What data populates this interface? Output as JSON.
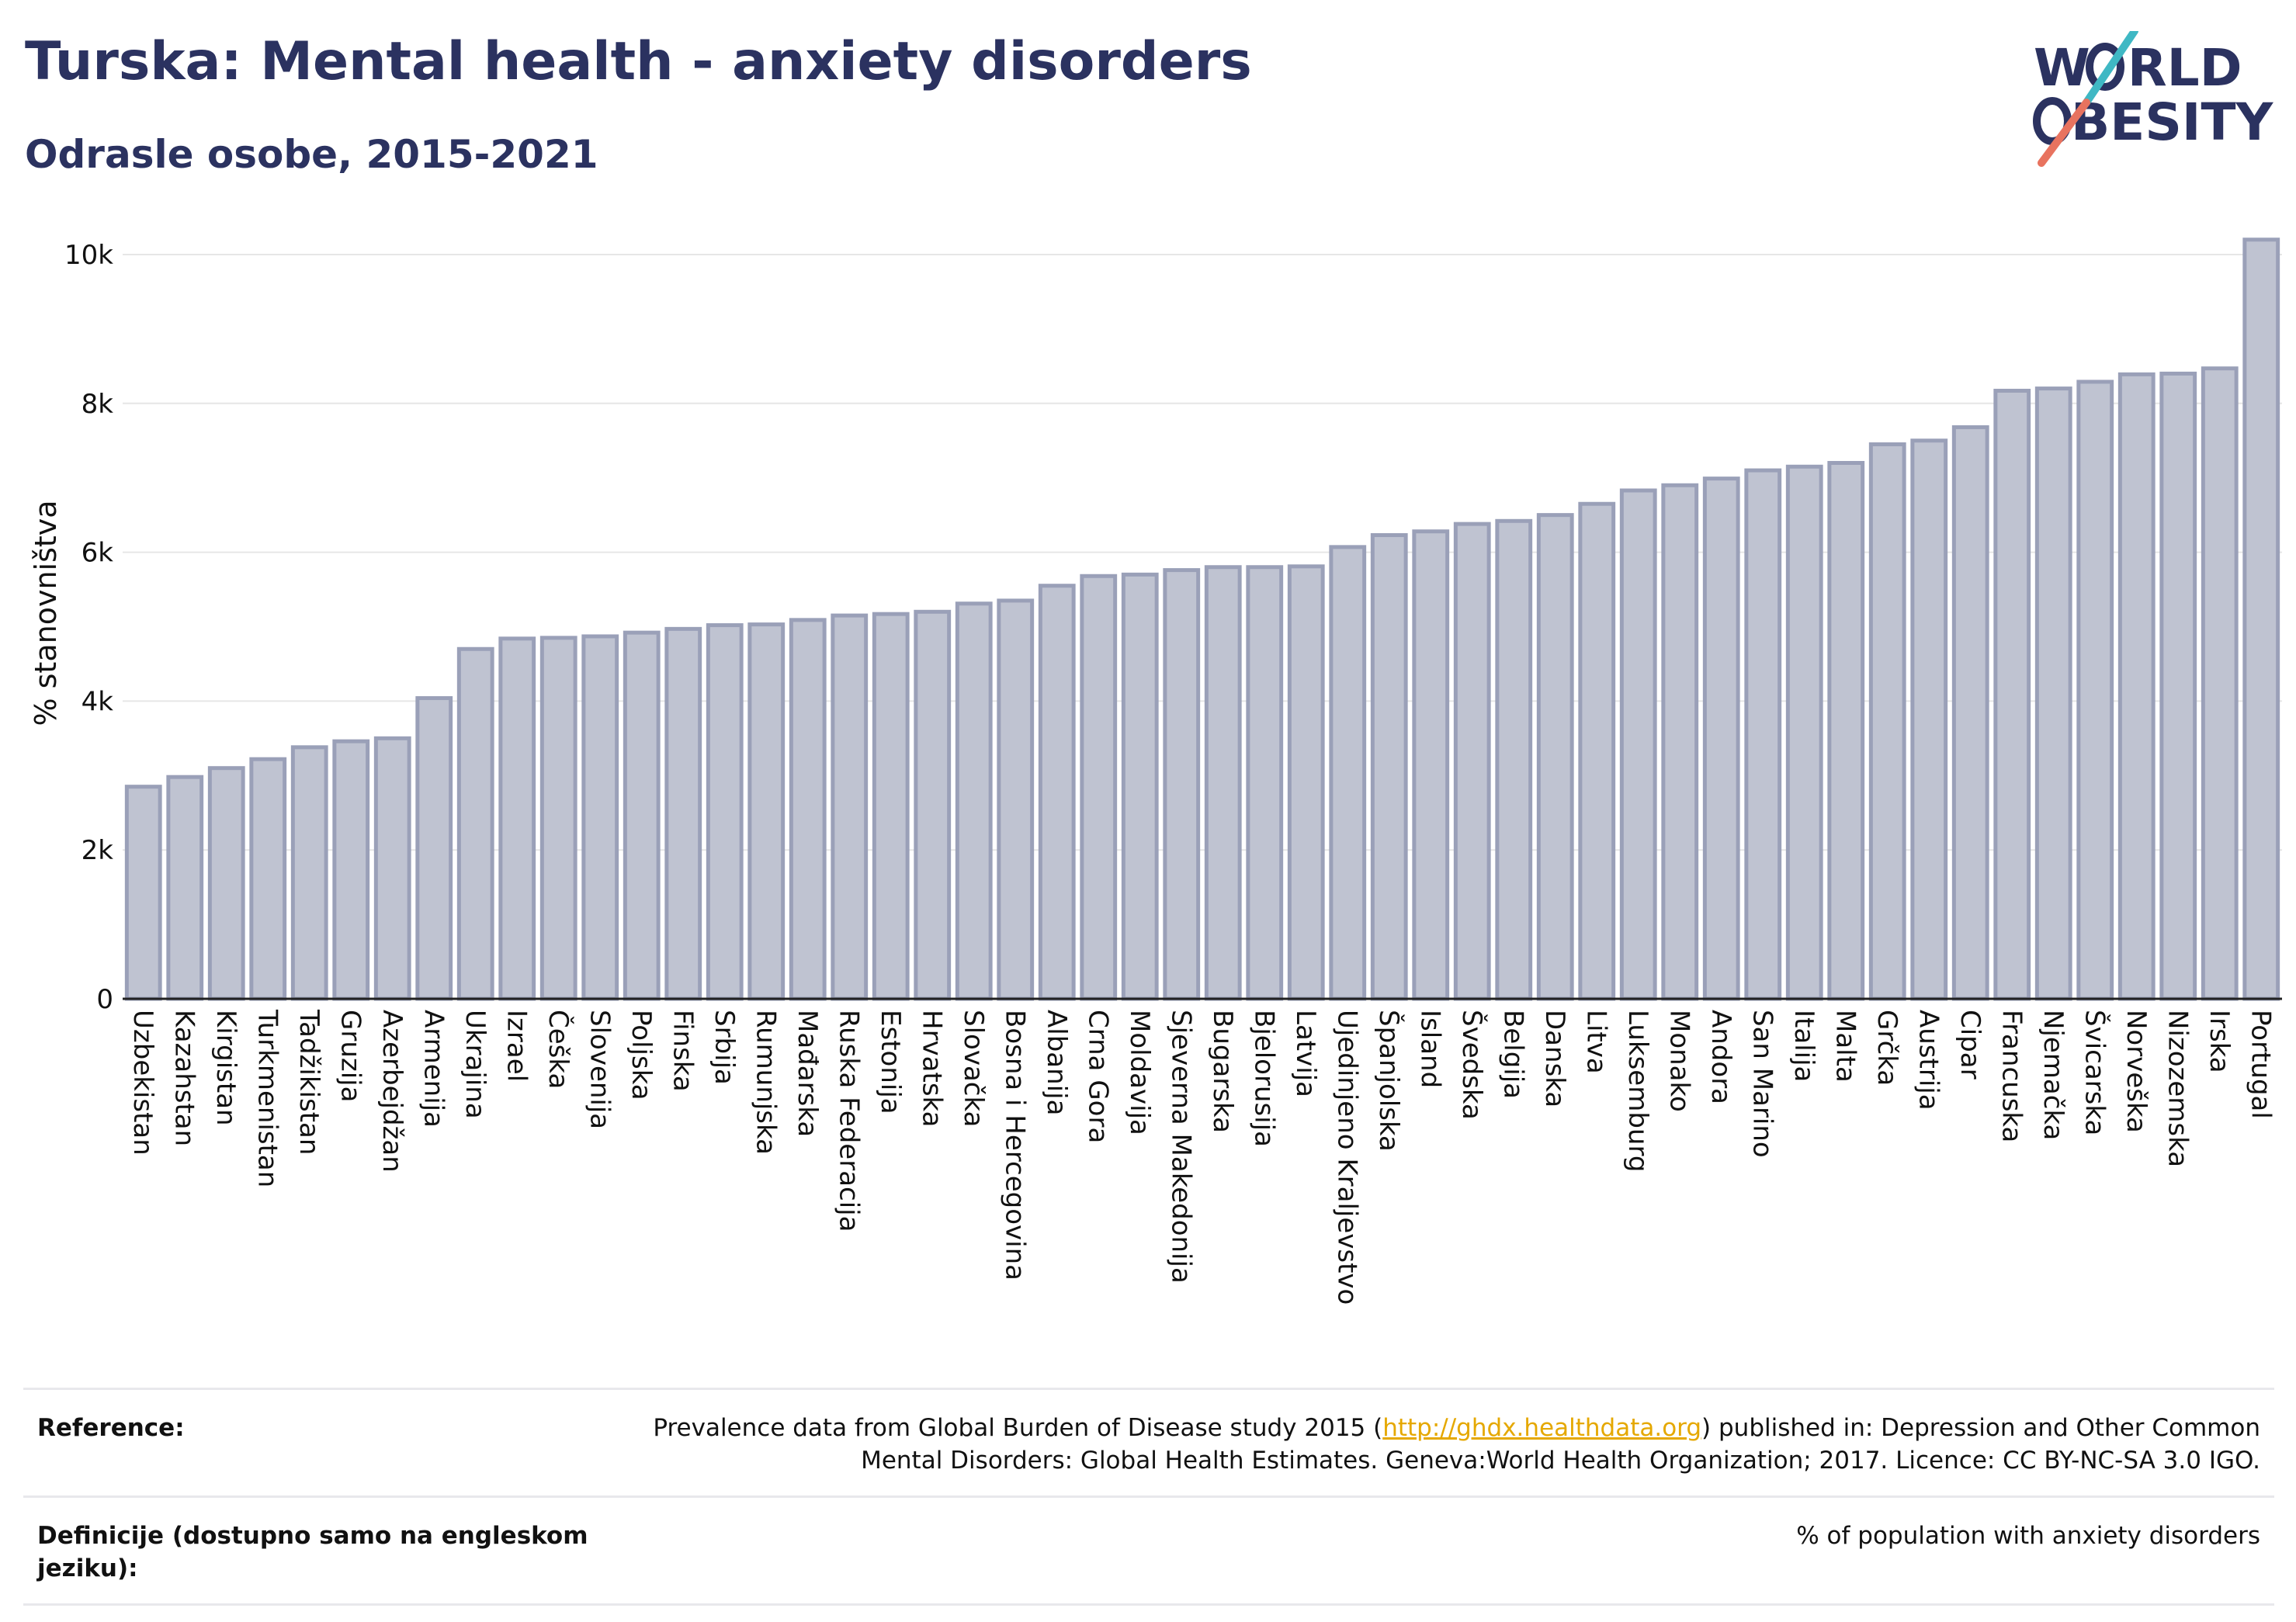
{
  "header": {
    "title": "Turska: Mental health - anxiety disorders",
    "subtitle": "Odrasle osobe, 2015-2021"
  },
  "logo": {
    "line1_a": "W",
    "line1_b": "RLD",
    "line2_b": "BESITY"
  },
  "colors": {
    "title": "#2b3260",
    "bar_fill": "#bfc3d1",
    "bar_stroke": "#9aa0b8",
    "logo_teal": "#3fb8c4",
    "logo_coral": "#e8735f",
    "link": "#e5a800"
  },
  "chart_data": {
    "type": "bar",
    "ylabel": "% stanovništva",
    "ylim": [
      0,
      10500
    ],
    "yticks": [
      0,
      2000,
      4000,
      6000,
      8000,
      10000
    ],
    "ytick_labels": [
      "0",
      "2k",
      "4k",
      "6k",
      "8k",
      "10k"
    ],
    "grid": true,
    "categories": [
      "Uzbekistan",
      "Kazahstan",
      "Kirgistan",
      "Turkmenistan",
      "Tadžikistan",
      "Gruzija",
      "Azerbejdžan",
      "Armenija",
      "Ukrajina",
      "Izrael",
      "Češka",
      "Slovenija",
      "Poljska",
      "Finska",
      "Srbija",
      "Rumunjska",
      "Mađarska",
      "Ruska Federacija",
      "Estonija",
      "Hrvatska",
      "Slovačka",
      "Bosna i Hercegovina",
      "Albanija",
      "Crna Gora",
      "Moldavija",
      "Sjeverna Makedonija",
      "Bugarska",
      "Bjelorusija",
      "Latvija",
      "Ujedinjeno Kraljevstvo",
      "Španjolska",
      "Island",
      "Švedska",
      "Belgija",
      "Danska",
      "Litva",
      "Luksemburg",
      "Monako",
      "Andora",
      "San Marino",
      "Italija",
      "Malta",
      "Grčka",
      "Austrija",
      "Cipar",
      "Francuska",
      "Njemačka",
      "Švicarska",
      "Norveška",
      "Nizozemska",
      "Irska",
      "Portugal"
    ],
    "values": [
      2850,
      2980,
      3100,
      3220,
      3380,
      3460,
      3500,
      4040,
      4700,
      4840,
      4850,
      4870,
      4920,
      4970,
      5020,
      5030,
      5090,
      5150,
      5170,
      5200,
      5310,
      5350,
      5550,
      5680,
      5700,
      5760,
      5800,
      5800,
      5810,
      6070,
      6230,
      6280,
      6380,
      6420,
      6500,
      6650,
      6830,
      6900,
      6990,
      7100,
      7150,
      7200,
      7450,
      7500,
      7680,
      8170,
      8200,
      8290,
      8390,
      8400,
      8470,
      10200
    ]
  },
  "footer": {
    "reference_label": "Reference:",
    "reference_pre": "Prevalence data from Global Burden of Disease study 2015 (",
    "reference_link": "http://ghdx.healthdata.org",
    "reference_post": ") published in: Depression and Other Common",
    "reference_line2": "Mental Disorders: Global Health Estimates. Geneva:World Health Organization; 2017. Licence: CC BY-NC-SA 3.0 IGO.",
    "definition_label": "Definicije (dostupno samo na engleskom jeziku):",
    "definition_text": "% of population with anxiety disorders"
  }
}
